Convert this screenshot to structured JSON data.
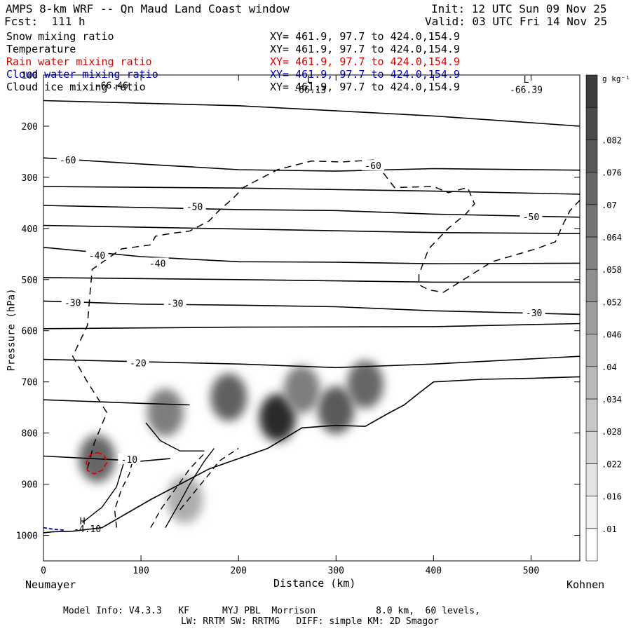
{
  "header": {
    "title": "AMPS 8-km WRF -- Qn Maud Land Coast window",
    "forecast": "Fcst:  111 h",
    "init": "Init: 12 UTC Sun 09 Nov 25",
    "valid": "Valid: 03 UTC Fri 14 Nov 25"
  },
  "fields": [
    {
      "name": "Snow mixing ratio",
      "xy": "XY= 461.9, 97.7 to 424.0,154.9",
      "color": "#000000"
    },
    {
      "name": "Temperature",
      "xy": "XY= 461.9, 97.7 to 424.0,154.9",
      "color": "#000000"
    },
    {
      "name": "Rain water mixing ratio",
      "xy": "XY= 461.9, 97.7 to 424.0,154.9",
      "color": "#e00000"
    },
    {
      "name": "Cloud water mixing ratio",
      "xy": "XY= 461.9, 97.7 to 424.0,154.9",
      "color": "#0000cc"
    },
    {
      "name": "Cloud ice mixing ratio",
      "xy": "XY= 461.9, 97.7 to 424.0,154.9",
      "color": "#000000"
    }
  ],
  "footer": {
    "line1": "Model Info: V4.3.3   KF      MYJ PBL  Morrison           8.0 km,  60 levels,",
    "line2": "LW: RRTM SW: RRTMG   DIFF: simple KM: 2D Smagor"
  },
  "chart_data": {
    "type": "heatmap",
    "title": "AMPS 8-km WRF -- Qn Maud Land Coast window",
    "xlabel": "Distance (km)",
    "ylabel": "Pressure (hPa)",
    "x_left_label": "Neumayer",
    "x_right_label": "Kohnen",
    "xlim": [
      0,
      550
    ],
    "ylim": [
      1050,
      100
    ],
    "x_ticks": [
      0,
      100,
      200,
      300,
      400,
      500
    ],
    "y_ticks": [
      100,
      200,
      300,
      400,
      500,
      600,
      700,
      800,
      900,
      1000
    ],
    "colorbar": {
      "unit": "g kg⁻¹",
      "ticks": [
        ".01",
        ".016",
        ".022",
        ".028",
        ".034",
        ".04",
        ".046",
        ".052",
        ".058",
        ".064",
        ".07",
        ".076",
        ".082"
      ],
      "bands": 15
    },
    "snow_maxima": [
      {
        "x": 125,
        "p": 760,
        "value": 0.05
      },
      {
        "x": 190,
        "p": 730,
        "value": 0.062
      },
      {
        "x": 240,
        "p": 770,
        "value": 0.085
      },
      {
        "x": 265,
        "p": 715,
        "value": 0.05
      },
      {
        "x": 300,
        "p": 755,
        "value": 0.065
      },
      {
        "x": 330,
        "p": 705,
        "value": 0.06
      },
      {
        "x": 55,
        "p": 850,
        "value": 0.06
      },
      {
        "x": 145,
        "p": 930,
        "value": 0.03
      }
    ],
    "isotherms": [
      {
        "label": "-60",
        "points": [
          [
            0,
            262
          ],
          [
            100,
            274
          ],
          [
            200,
            285
          ],
          [
            300,
            288
          ],
          [
            400,
            283
          ],
          [
            550,
            286
          ]
        ]
      },
      {
        "label": "-50",
        "points": [
          [
            0,
            355
          ],
          [
            200,
            363
          ],
          [
            300,
            365
          ],
          [
            400,
            372
          ],
          [
            550,
            378
          ]
        ]
      },
      {
        "label": "-40",
        "points": [
          [
            0,
            437
          ],
          [
            100,
            455
          ],
          [
            200,
            465
          ],
          [
            300,
            466
          ],
          [
            400,
            469
          ],
          [
            550,
            468
          ]
        ]
      },
      {
        "label": "-30",
        "points": [
          [
            0,
            542
          ],
          [
            100,
            548
          ],
          [
            200,
            550
          ],
          [
            300,
            553
          ],
          [
            400,
            561
          ],
          [
            550,
            568
          ]
        ]
      },
      {
        "label": "-20",
        "points": [
          [
            0,
            656
          ],
          [
            200,
            665
          ],
          [
            300,
            672
          ],
          [
            400,
            665
          ],
          [
            550,
            650
          ]
        ]
      },
      {
        "label": "-10",
        "points": [
          [
            0,
            845
          ],
          [
            50,
            850
          ],
          [
            100,
            855
          ],
          [
            130,
            850
          ]
        ]
      }
    ],
    "extra_isotherms": [
      [
        [
          0,
          150
        ],
        [
          200,
          160
        ],
        [
          300,
          170
        ],
        [
          400,
          180
        ],
        [
          550,
          200
        ]
      ],
      [
        [
          0,
          318
        ],
        [
          200,
          321
        ],
        [
          400,
          327
        ],
        [
          550,
          333
        ]
      ],
      [
        [
          0,
          394
        ],
        [
          200,
          401
        ],
        [
          400,
          408
        ],
        [
          550,
          410
        ]
      ],
      [
        [
          0,
          496
        ],
        [
          200,
          500
        ],
        [
          400,
          505
        ],
        [
          550,
          505
        ]
      ],
      [
        [
          0,
          596
        ],
        [
          200,
          593
        ],
        [
          400,
          592
        ],
        [
          550,
          586
        ]
      ],
      [
        [
          0,
          735
        ],
        [
          100,
          742
        ],
        [
          150,
          745
        ]
      ]
    ],
    "annotations": [
      {
        "text": "L",
        "x": 273,
        "p": 108
      },
      {
        "text": "-66.13",
        "x": 273,
        "p": 128
      },
      {
        "text": "L",
        "x": 495,
        "p": 108
      },
      {
        "text": "-66.39",
        "x": 495,
        "p": 128
      },
      {
        "text": "-66.46",
        "x": 70,
        "p": 120
      },
      {
        "text": "H",
        "x": 40,
        "p": 972
      },
      {
        "text": "-4.10",
        "x": 45,
        "p": 987
      }
    ],
    "terrain": [
      [
        0,
        995
      ],
      [
        10,
        993
      ],
      [
        30,
        992
      ],
      [
        60,
        985
      ],
      [
        110,
        930
      ],
      [
        170,
        870
      ],
      [
        230,
        830
      ],
      [
        265,
        790
      ],
      [
        300,
        785
      ],
      [
        330,
        787
      ],
      [
        355,
        760
      ],
      [
        370,
        745
      ],
      [
        385,
        722
      ],
      [
        400,
        700
      ],
      [
        450,
        695
      ],
      [
        500,
        693
      ],
      [
        550,
        690
      ]
    ],
    "ice_contour_segments": [
      [
        [
          75,
          985
        ],
        [
          73,
          950
        ],
        [
          80,
          910
        ],
        [
          88,
          880
        ],
        [
          92,
          850
        ]
      ],
      [
        [
          40,
          975
        ],
        [
          60,
          945
        ],
        [
          75,
          905
        ],
        [
          82,
          860
        ]
      ],
      [
        [
          110,
          985
        ],
        [
          120,
          950
        ],
        [
          135,
          910
        ],
        [
          150,
          870
        ],
        [
          165,
          840
        ]
      ],
      [
        [
          125,
          985
        ],
        [
          140,
          935
        ],
        [
          150,
          900
        ],
        [
          165,
          855
        ],
        [
          175,
          830
        ]
      ],
      [
        [
          140,
          950
        ],
        [
          155,
          915
        ],
        [
          170,
          880
        ],
        [
          180,
          855
        ],
        [
          200,
          830
        ]
      ],
      [
        [
          105,
          780
        ],
        [
          120,
          815
        ],
        [
          140,
          835
        ],
        [
          165,
          835
        ]
      ]
    ],
    "cloud_ice_dashed": [
      [
        45,
        870
      ],
      [
        52,
        820
      ],
      [
        65,
        760
      ],
      [
        45,
        700
      ],
      [
        30,
        650
      ],
      [
        45,
        590
      ],
      [
        48,
        520
      ],
      [
        50,
        480
      ],
      [
        80,
        440
      ],
      [
        110,
        432
      ],
      [
        115,
        415
      ],
      [
        130,
        410
      ],
      [
        150,
        405
      ],
      [
        170,
        385
      ],
      [
        180,
        365
      ],
      [
        195,
        340
      ],
      [
        205,
        320
      ],
      [
        220,
        305
      ],
      [
        240,
        285
      ],
      [
        275,
        268
      ],
      [
        305,
        270
      ],
      [
        340,
        266
      ],
      [
        348,
        290
      ],
      [
        360,
        320
      ],
      [
        400,
        318
      ],
      [
        415,
        330
      ],
      [
        435,
        320
      ],
      [
        442,
        352
      ],
      [
        433,
        372
      ],
      [
        415,
        400
      ],
      [
        395,
        440
      ],
      [
        385,
        490
      ],
      [
        385,
        510
      ],
      [
        395,
        520
      ],
      [
        410,
        525
      ],
      [
        460,
        465
      ],
      [
        505,
        440
      ],
      [
        525,
        426
      ],
      [
        532,
        395
      ],
      [
        540,
        365
      ],
      [
        550,
        345
      ]
    ],
    "rain_contour": [
      [
        55,
        838
      ],
      [
        62,
        843
      ],
      [
        65,
        858
      ],
      [
        60,
        873
      ],
      [
        52,
        880
      ],
      [
        45,
        873
      ],
      [
        44,
        858
      ],
      [
        48,
        843
      ],
      [
        55,
        838
      ]
    ],
    "cloud_water_contour": [
      [
        0,
        985
      ],
      [
        10,
        988
      ],
      [
        22,
        990
      ]
    ]
  }
}
